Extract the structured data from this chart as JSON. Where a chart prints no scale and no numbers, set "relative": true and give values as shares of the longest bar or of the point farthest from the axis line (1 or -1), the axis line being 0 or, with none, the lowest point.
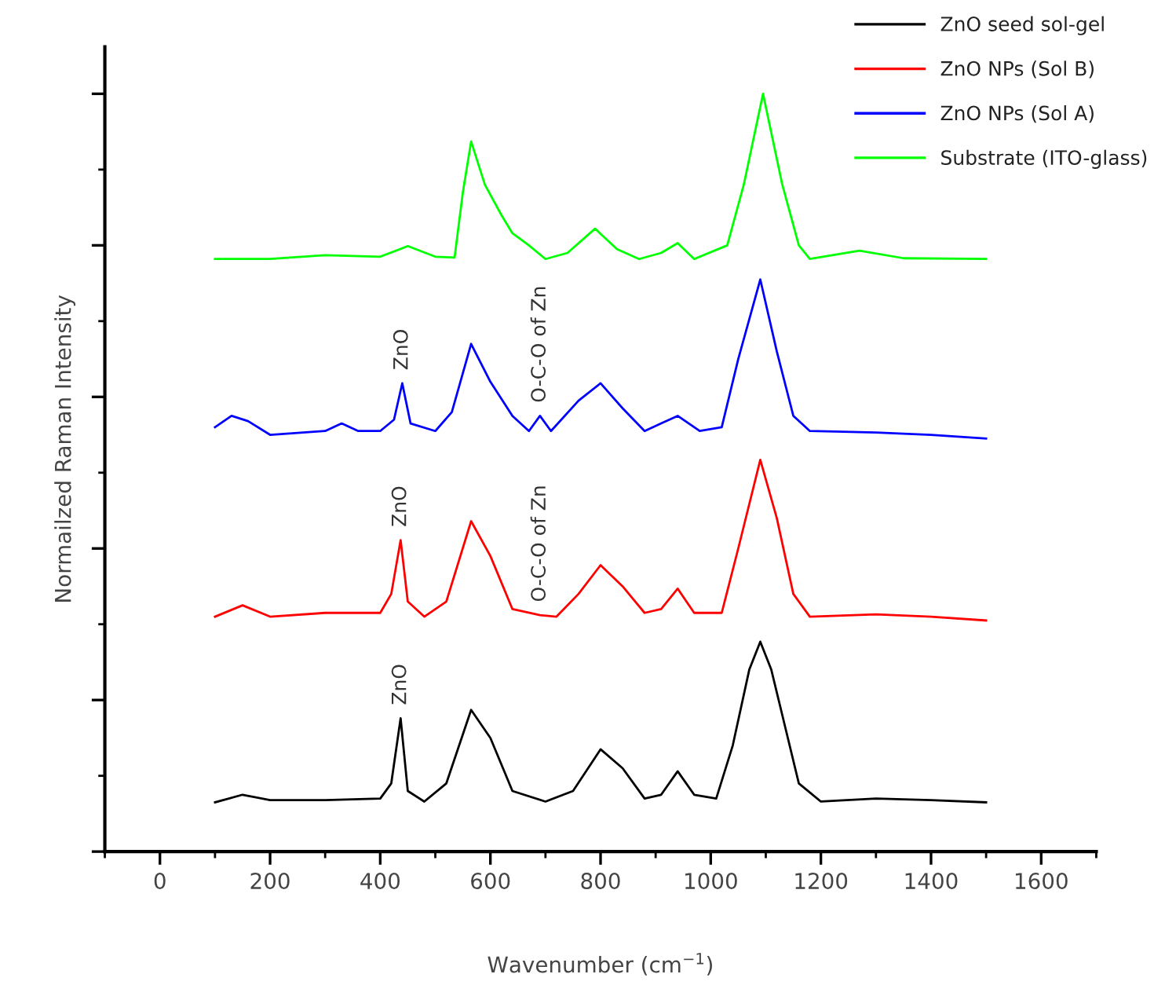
{
  "chart_data": {
    "type": "line",
    "relative": true,
    "xlabel": "Wavenumber (cm$^{−1}$)",
    "ylabel": "Normailzed Raman Intensity",
    "xlim": [
      -100,
      1700
    ],
    "xticks": [
      0,
      200,
      400,
      600,
      800,
      1000,
      1200,
      1400,
      1600
    ],
    "legend": "top right",
    "grid": false,
    "marker": "none",
    "line_style": "solid",
    "series": [
      {
        "name": "ZnO seed sol-gel",
        "color": "#000000",
        "x": [
          100,
          150,
          200,
          300,
          400,
          420,
          437,
          450,
          480,
          520,
          565,
          600,
          640,
          700,
          750,
          800,
          840,
          880,
          910,
          940,
          970,
          1010,
          1040,
          1070,
          1090,
          1110,
          1130,
          1160,
          1200,
          1300,
          1400,
          1500
        ],
        "values": [
          0.065,
          0.075,
          0.068,
          0.068,
          0.07,
          0.09,
          0.176,
          0.08,
          0.066,
          0.09,
          0.187,
          0.15,
          0.08,
          0.066,
          0.08,
          0.135,
          0.11,
          0.07,
          0.075,
          0.106,
          0.075,
          0.07,
          0.14,
          0.24,
          0.277,
          0.24,
          0.18,
          0.09,
          0.066,
          0.07,
          0.068,
          0.065
        ]
      },
      {
        "name": "ZnO NPs (Sol B)",
        "color": "#ff0000",
        "x": [
          100,
          150,
          200,
          300,
          400,
          420,
          437,
          450,
          480,
          520,
          565,
          600,
          640,
          690,
          720,
          760,
          800,
          840,
          880,
          910,
          940,
          970,
          1020,
          1050,
          1090,
          1120,
          1150,
          1180,
          1300,
          1400,
          1500
        ],
        "values": [
          0.31,
          0.325,
          0.31,
          0.315,
          0.315,
          0.34,
          0.411,
          0.33,
          0.31,
          0.33,
          0.436,
          0.39,
          0.32,
          0.312,
          0.31,
          0.34,
          0.378,
          0.35,
          0.315,
          0.32,
          0.347,
          0.315,
          0.315,
          0.4,
          0.517,
          0.44,
          0.34,
          0.31,
          0.313,
          0.31,
          0.305
        ]
      },
      {
        "name": "ZnO NPs (Sol A)",
        "color": "#0000ff",
        "x": [
          100,
          130,
          160,
          200,
          300,
          330,
          360,
          400,
          425,
          440,
          455,
          500,
          530,
          565,
          600,
          640,
          670,
          690,
          710,
          760,
          800,
          840,
          880,
          910,
          940,
          980,
          1020,
          1050,
          1090,
          1120,
          1150,
          1180,
          1300,
          1400,
          1500
        ],
        "values": [
          0.56,
          0.575,
          0.568,
          0.55,
          0.555,
          0.565,
          0.555,
          0.555,
          0.57,
          0.618,
          0.565,
          0.555,
          0.58,
          0.67,
          0.62,
          0.575,
          0.555,
          0.575,
          0.555,
          0.595,
          0.618,
          0.585,
          0.555,
          0.565,
          0.575,
          0.555,
          0.56,
          0.65,
          0.755,
          0.66,
          0.575,
          0.555,
          0.553,
          0.55,
          0.545
        ]
      },
      {
        "name": "Substrate (ITO-glass)",
        "color": "#00ff00",
        "x": [
          100,
          200,
          300,
          400,
          450,
          500,
          535,
          550,
          565,
          590,
          620,
          640,
          670,
          700,
          740,
          790,
          830,
          870,
          910,
          940,
          970,
          1030,
          1060,
          1095,
          1130,
          1160,
          1180,
          1270,
          1350,
          1500
        ],
        "values": [
          0.782,
          0.782,
          0.787,
          0.785,
          0.799,
          0.785,
          0.784,
          0.87,
          0.937,
          0.88,
          0.84,
          0.816,
          0.8,
          0.782,
          0.79,
          0.822,
          0.795,
          0.782,
          0.79,
          0.803,
          0.782,
          0.8,
          0.88,
          1.0,
          0.88,
          0.8,
          0.782,
          0.793,
          0.783,
          0.782
        ]
      }
    ],
    "annotations": [
      {
        "text": "ZnO",
        "x": 437,
        "y": 0.176
      },
      {
        "text": "ZnO",
        "x": 437,
        "y": 0.411
      },
      {
        "text": "O-C-O of Zn",
        "x": 690,
        "y": 0.312
      },
      {
        "text": "ZnO",
        "x": 440,
        "y": 0.618
      },
      {
        "text": "O-C-O of Zn",
        "x": 690,
        "y": 0.575
      }
    ]
  }
}
